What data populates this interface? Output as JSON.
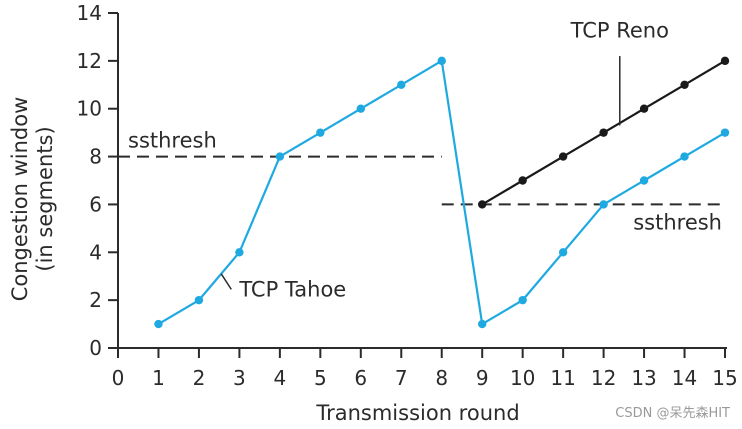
{
  "chart_data": {
    "type": "line",
    "xlabel": "Transmission round",
    "ylabel": [
      "Congestion window",
      "(in segments)"
    ],
    "xlim": [
      0,
      15
    ],
    "ylim": [
      0,
      14
    ],
    "x_ticks": [
      0,
      1,
      2,
      3,
      4,
      5,
      6,
      7,
      8,
      9,
      10,
      11,
      12,
      13,
      14,
      15
    ],
    "y_ticks": [
      0,
      2,
      4,
      6,
      8,
      10,
      12,
      14
    ],
    "grid": false,
    "series": [
      {
        "name": "TCP Tahoe",
        "color": "#1fa9e1",
        "points": [
          [
            1,
            1
          ],
          [
            2,
            2
          ],
          [
            3,
            4
          ],
          [
            4,
            8
          ],
          [
            5,
            9
          ],
          [
            6,
            10
          ],
          [
            7,
            11
          ],
          [
            8,
            12
          ],
          [
            9,
            1
          ],
          [
            10,
            2
          ],
          [
            11,
            4
          ],
          [
            12,
            6
          ],
          [
            13,
            7
          ],
          [
            14,
            8
          ],
          [
            15,
            9
          ]
        ]
      },
      {
        "name": "TCP Reno",
        "color": "#1a1a1a",
        "points": [
          [
            9,
            6
          ],
          [
            10,
            7
          ],
          [
            11,
            8
          ],
          [
            12,
            9
          ],
          [
            13,
            10
          ],
          [
            14,
            11
          ],
          [
            15,
            12
          ]
        ]
      }
    ],
    "thresholds": [
      {
        "label": "ssthresh",
        "y": 8,
        "x_range": [
          0,
          8
        ]
      },
      {
        "label": "ssthresh",
        "y": 6,
        "x_range": [
          8,
          15
        ]
      }
    ]
  },
  "watermark": "CSDN @呆先森HIT"
}
